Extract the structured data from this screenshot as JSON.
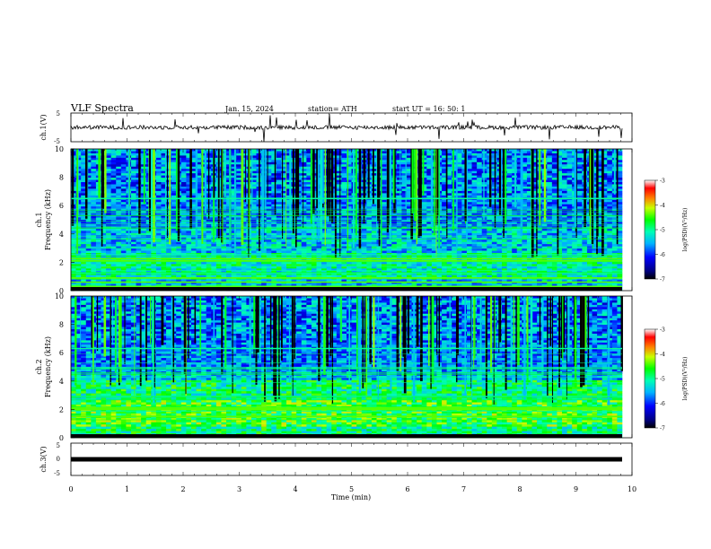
{
  "header": {
    "title": "VLF  Spectra",
    "date": "Jan. 15, 2024",
    "station": "station= ATH",
    "start": "start  UT  =    16: 50: 1"
  },
  "chart_data": [
    {
      "type": "line",
      "name": "waveform-ch1",
      "ylabel": "ch.1(V)",
      "ylim": [
        -5,
        5
      ],
      "yticks": [
        "5",
        "-5"
      ],
      "xlim": [
        0,
        10
      ],
      "description_level": 0
    },
    {
      "type": "heatmap",
      "name": "spectrogram-ch1",
      "ylabel_line1": "ch.1",
      "ylabel_line2": "Frequency  (kHz)",
      "ylim": [
        0,
        10
      ],
      "yticks": [
        "0",
        "2",
        "4",
        "6",
        "8",
        "10"
      ],
      "xlim": [
        0,
        10
      ],
      "strong_bands_khz": [
        0.3,
        0.6,
        0.9,
        2.1,
        2.25,
        6.5
      ],
      "colorbar": {
        "label": "log(PSD)(V²/Hz)",
        "ticks": [
          "-3",
          "-4",
          "-5",
          "-6",
          "-7"
        ],
        "range": [
          -7,
          -3
        ]
      }
    },
    {
      "type": "heatmap",
      "name": "spectrogram-ch2",
      "ylabel_line1": "ch.2",
      "ylabel_line2": "Frequency  (kHz)",
      "ylim": [
        0,
        10
      ],
      "yticks": [
        "0",
        "2",
        "4",
        "6",
        "8",
        "10"
      ],
      "xlim": [
        0,
        10
      ],
      "strong_bands_khz": [
        0.2,
        1.5,
        2.0,
        2.1,
        6.3
      ],
      "colorbar": {
        "label": "log(PSD)(V²/Hz)",
        "ticks": [
          "-3",
          "-4",
          "-5",
          "-6",
          "-7"
        ],
        "range": [
          -7,
          -3
        ]
      }
    },
    {
      "type": "line",
      "name": "waveform-ch3",
      "ylabel": "ch.3(V)",
      "ylim": [
        -5,
        5
      ],
      "yticks": [
        "5",
        "0",
        "-5"
      ],
      "xlim": [
        0,
        10
      ],
      "xticks": [
        "0",
        "1",
        "2",
        "3",
        "4",
        "5",
        "6",
        "7",
        "8",
        "9",
        "10"
      ],
      "xlabel": "Time  (min)",
      "level": 0
    }
  ]
}
